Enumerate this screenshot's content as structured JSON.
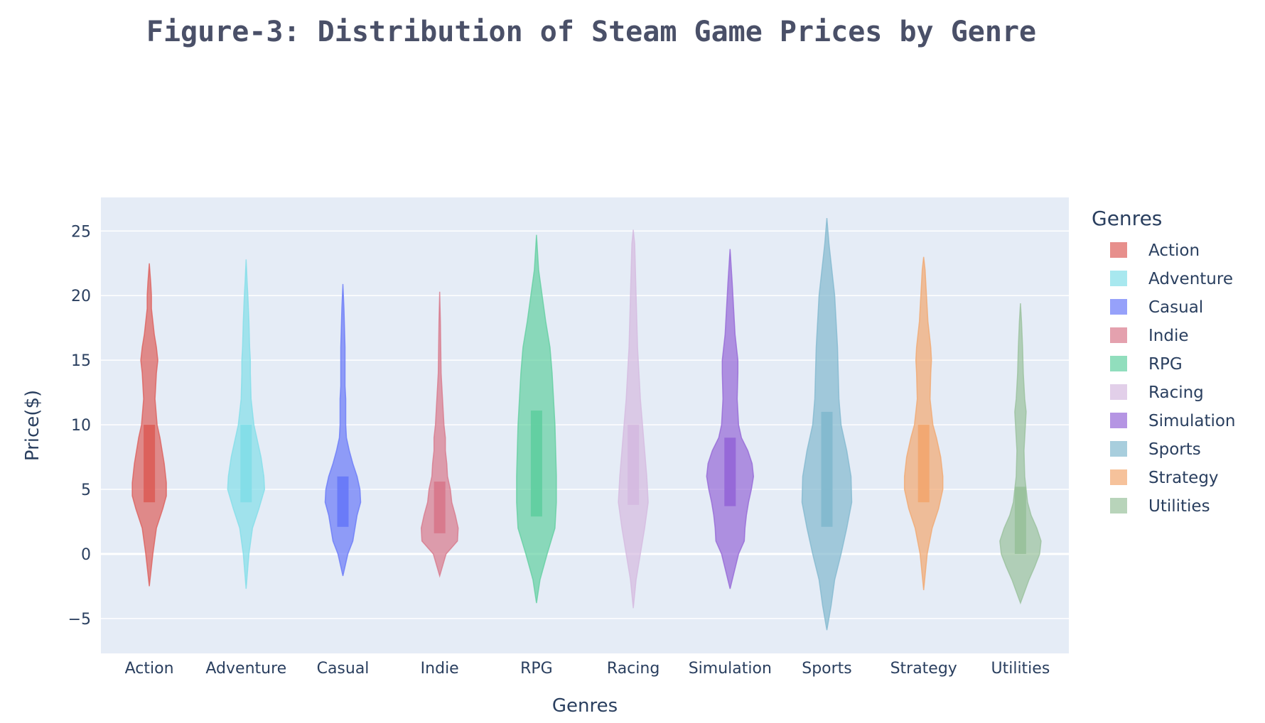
{
  "chart_data": {
    "type": "violin",
    "title": "Figure-3: Distribution of Steam Game Prices by Genre",
    "xlabel": "Genres",
    "ylabel": "Price($)",
    "ylim": [
      -7.7,
      27.6
    ],
    "yticks": [
      25,
      20,
      15,
      10,
      5,
      0,
      -5
    ],
    "ytick_labels": [
      "25",
      "20",
      "15",
      "10",
      "5",
      "0",
      "−5"
    ],
    "grid": true,
    "legend": {
      "title": "Genres",
      "position": "right"
    },
    "categories": [
      "Action",
      "Adventure",
      "Casual",
      "Indie",
      "RPG",
      "Racing",
      "Simulation",
      "Sports",
      "Strategy",
      "Utilities"
    ],
    "series": [
      {
        "name": "Action",
        "color": "#dc5a55",
        "q1": 4,
        "q3": 10,
        "min": -2.5,
        "max": 22.5,
        "profile": [
          [
            -2.5,
            0
          ],
          [
            0,
            5
          ],
          [
            2,
            10
          ],
          [
            3.5,
            19
          ],
          [
            4.5,
            24
          ],
          [
            5.5,
            24
          ],
          [
            7,
            21
          ],
          [
            9,
            15
          ],
          [
            10,
            11
          ],
          [
            12,
            8
          ],
          [
            14,
            10
          ],
          [
            15,
            12
          ],
          [
            16,
            10
          ],
          [
            17,
            7
          ],
          [
            18,
            5
          ],
          [
            19,
            3
          ],
          [
            20,
            3
          ],
          [
            21,
            2
          ],
          [
            22.5,
            0
          ]
        ]
      },
      {
        "name": "Adventure",
        "color": "#7fdde8",
        "q1": 4,
        "q3": 10,
        "min": -2.7,
        "max": 22.8,
        "profile": [
          [
            -2.7,
            0
          ],
          [
            0,
            4
          ],
          [
            2,
            9
          ],
          [
            3.5,
            18
          ],
          [
            5,
            26
          ],
          [
            6,
            25
          ],
          [
            7.5,
            21
          ],
          [
            9,
            15
          ],
          [
            10,
            11
          ],
          [
            12,
            7
          ],
          [
            14,
            6
          ],
          [
            15,
            6
          ],
          [
            16,
            5
          ],
          [
            18,
            4
          ],
          [
            20,
            2.5
          ],
          [
            21,
            1.5
          ],
          [
            22.8,
            0
          ]
        ]
      },
      {
        "name": "Casual",
        "color": "#6475f8",
        "q1": 2.1,
        "q3": 6,
        "min": -1.7,
        "max": 20.9,
        "profile": [
          [
            -1.7,
            0
          ],
          [
            0,
            7
          ],
          [
            1,
            14
          ],
          [
            2,
            17
          ],
          [
            3,
            20
          ],
          [
            4,
            25
          ],
          [
            5,
            24
          ],
          [
            6,
            20
          ],
          [
            7,
            14
          ],
          [
            8,
            9
          ],
          [
            9,
            5
          ],
          [
            10,
            4
          ],
          [
            11,
            4
          ],
          [
            12,
            4
          ],
          [
            13,
            3
          ],
          [
            15,
            3
          ],
          [
            16,
            3
          ],
          [
            18,
            2
          ],
          [
            19,
            1.5
          ],
          [
            20.9,
            0
          ]
        ]
      },
      {
        "name": "Indie",
        "color": "#d77487",
        "q1": 1.6,
        "q3": 5.6,
        "min": -1.7,
        "max": 20.3,
        "profile": [
          [
            -1.7,
            0
          ],
          [
            0,
            9
          ],
          [
            1,
            25
          ],
          [
            2,
            26
          ],
          [
            3,
            22
          ],
          [
            4,
            17
          ],
          [
            5,
            15
          ],
          [
            6,
            11
          ],
          [
            7,
            10
          ],
          [
            8,
            8
          ],
          [
            9,
            8
          ],
          [
            10,
            6
          ],
          [
            11,
            5
          ],
          [
            12,
            4
          ],
          [
            13,
            3
          ],
          [
            14,
            2
          ],
          [
            16,
            1.5
          ],
          [
            18,
            1
          ],
          [
            20.3,
            0
          ]
        ]
      },
      {
        "name": "RPG",
        "color": "#5dce9e",
        "q1": 2.9,
        "q3": 11.1,
        "min": -3.8,
        "max": 24.7,
        "profile": [
          [
            -3.8,
            0
          ],
          [
            -2,
            5
          ],
          [
            0,
            15
          ],
          [
            2,
            26
          ],
          [
            4,
            28
          ],
          [
            6,
            28
          ],
          [
            8,
            27
          ],
          [
            10,
            26
          ],
          [
            12,
            24
          ],
          [
            14,
            22
          ],
          [
            16,
            19
          ],
          [
            18,
            13
          ],
          [
            20,
            8
          ],
          [
            22,
            3
          ],
          [
            24.7,
            0
          ]
        ]
      },
      {
        "name": "Racing",
        "color": "#d4b8df",
        "q1": 3.8,
        "q3": 10,
        "min": -4.2,
        "max": 25.1,
        "profile": [
          [
            -4.2,
            0
          ],
          [
            -2,
            4
          ],
          [
            0,
            10
          ],
          [
            2,
            16
          ],
          [
            4,
            21
          ],
          [
            6,
            19
          ],
          [
            8,
            16
          ],
          [
            10,
            13
          ],
          [
            12,
            10
          ],
          [
            14,
            8
          ],
          [
            16,
            6
          ],
          [
            18,
            5
          ],
          [
            20,
            4
          ],
          [
            22,
            3
          ],
          [
            24,
            2
          ],
          [
            25.1,
            0
          ]
        ]
      },
      {
        "name": "Simulation",
        "color": "#9263d6",
        "q1": 3.7,
        "q3": 9,
        "min": -2.7,
        "max": 23.6,
        "profile": [
          [
            -2.7,
            0
          ],
          [
            0,
            12
          ],
          [
            1,
            20
          ],
          [
            2,
            21
          ],
          [
            3,
            23
          ],
          [
            4,
            26
          ],
          [
            5,
            30
          ],
          [
            6,
            33
          ],
          [
            7,
            31
          ],
          [
            8,
            25
          ],
          [
            9,
            16
          ],
          [
            10,
            12
          ],
          [
            12,
            10
          ],
          [
            14,
            11
          ],
          [
            15,
            11
          ],
          [
            16,
            9
          ],
          [
            17,
            7
          ],
          [
            19,
            5
          ],
          [
            21,
            3
          ],
          [
            23.6,
            0
          ]
        ]
      },
      {
        "name": "Sports",
        "color": "#7fb7cd",
        "q1": 2.1,
        "q3": 11,
        "min": -5.9,
        "max": 26,
        "profile": [
          [
            -5.9,
            0
          ],
          [
            -4,
            6
          ],
          [
            -2,
            11
          ],
          [
            0,
            20
          ],
          [
            2,
            28
          ],
          [
            4,
            35
          ],
          [
            6,
            34
          ],
          [
            8,
            28
          ],
          [
            10,
            20
          ],
          [
            12,
            17
          ],
          [
            14,
            16
          ],
          [
            16,
            15
          ],
          [
            18,
            13
          ],
          [
            20,
            11
          ],
          [
            22,
            7
          ],
          [
            24,
            3
          ],
          [
            26,
            0
          ]
        ]
      },
      {
        "name": "Strategy",
        "color": "#f2a56b",
        "q1": 4,
        "q3": 10,
        "min": -2.8,
        "max": 23,
        "profile": [
          [
            -2.8,
            0
          ],
          [
            0,
            5
          ],
          [
            2,
            12
          ],
          [
            3.5,
            21
          ],
          [
            5,
            27
          ],
          [
            6,
            27
          ],
          [
            7.5,
            24
          ],
          [
            9,
            18
          ],
          [
            10,
            13
          ],
          [
            12,
            9
          ],
          [
            14,
            10
          ],
          [
            15,
            11
          ],
          [
            16,
            10
          ],
          [
            18,
            6
          ],
          [
            20,
            4
          ],
          [
            22,
            2
          ],
          [
            23,
            0
          ]
        ]
      },
      {
        "name": "Utilities",
        "color": "#97bf99",
        "q1": 0,
        "q3": 5.2,
        "min": -3.8,
        "max": 19.4,
        "profile": [
          [
            -3.8,
            0
          ],
          [
            -2,
            12
          ],
          [
            -1,
            20
          ],
          [
            0,
            27
          ],
          [
            1,
            29
          ],
          [
            2,
            23
          ],
          [
            3,
            15
          ],
          [
            4,
            10
          ],
          [
            5,
            8
          ],
          [
            6,
            6
          ],
          [
            8,
            5
          ],
          [
            10,
            7
          ],
          [
            11,
            8
          ],
          [
            12,
            6
          ],
          [
            14,
            4
          ],
          [
            16,
            3
          ],
          [
            18,
            1.5
          ],
          [
            19.4,
            0
          ]
        ]
      }
    ]
  }
}
